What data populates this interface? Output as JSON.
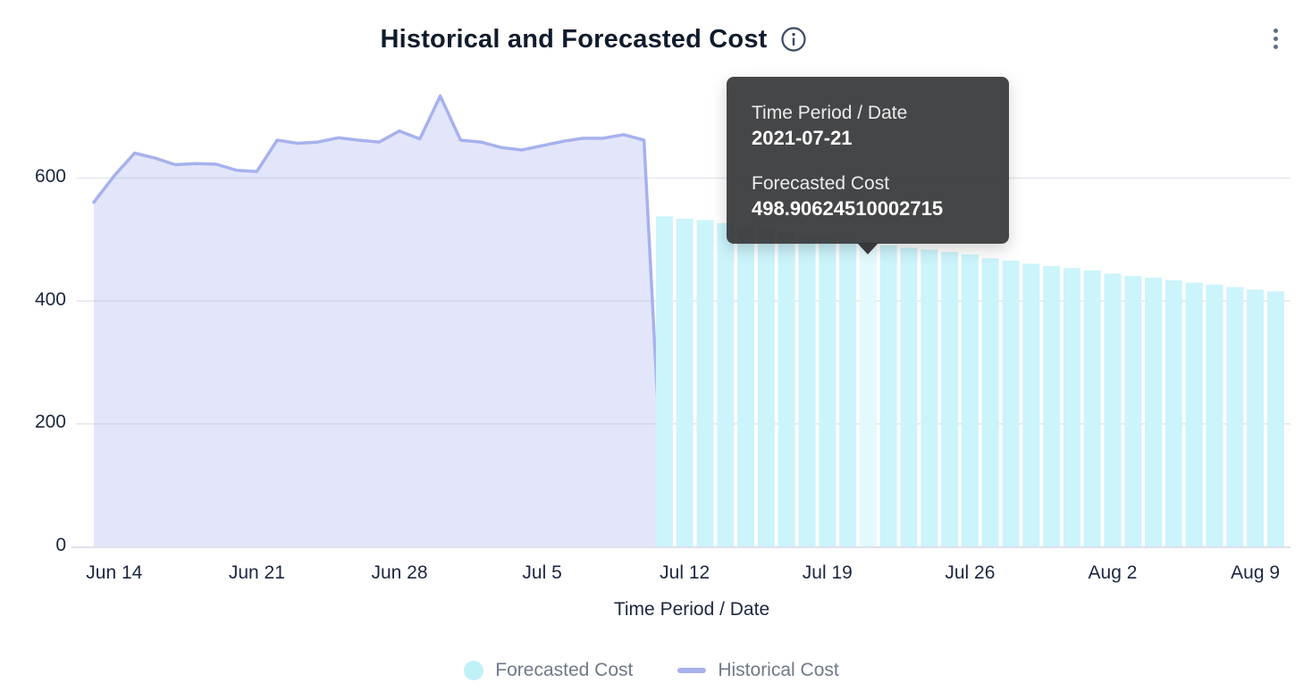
{
  "header": {
    "title": "Historical and Forecasted Cost"
  },
  "menu": {
    "more_options_icon": "kebab-menu-icon",
    "info_icon": "info-icon"
  },
  "tooltip": {
    "field_label": "Time Period / Date",
    "date": "2021-07-21",
    "value_label": "Forecasted Cost",
    "value": "498.90624510002715"
  },
  "legend": [
    {
      "label": "Forecasted Cost",
      "swatch": "circle",
      "color": "#bff1f6"
    },
    {
      "label": "Historical Cost",
      "swatch": "line",
      "color": "#a7b1ee"
    }
  ],
  "colors": {
    "title_text": "#101c2c",
    "axis_text": "#1b2740",
    "legend_text": "#6f7989",
    "gridline": "#e6e7ef",
    "baseline": "#dfe1ec",
    "bar_fill": "#cbf4fb",
    "bar_highlight_fill": "#e3fafd",
    "area_line": "#a7b1ee",
    "area_fill": "rgba(167,177,240,0.32)",
    "tooltip_bg": "#333436",
    "icon_gray": "#3b4a63"
  },
  "chart_data": {
    "type": "mixed",
    "title": "Historical and Forecasted Cost",
    "xlabel": "Time Period / Date",
    "ylabel": "",
    "ylim": [
      0,
      760
    ],
    "grid": true,
    "legend_position": "bottom",
    "y_ticks": [
      0,
      200,
      400,
      600
    ],
    "x_tick_labels": [
      "Jun 14",
      "Jun 21",
      "Jun 28",
      "Jul 5",
      "Jul 12",
      "Jul 19",
      "Jul 26",
      "Aug 2",
      "Aug 9"
    ],
    "x_tick_dates": [
      "2021-06-14",
      "2021-06-21",
      "2021-06-28",
      "2021-07-05",
      "2021-07-12",
      "2021-07-19",
      "2021-07-26",
      "2021-08-02",
      "2021-08-09"
    ],
    "series": [
      {
        "name": "Historical Cost",
        "type": "area",
        "dates": [
          "2021-06-13",
          "2021-06-14",
          "2021-06-15",
          "2021-06-16",
          "2021-06-17",
          "2021-06-18",
          "2021-06-19",
          "2021-06-20",
          "2021-06-21",
          "2021-06-22",
          "2021-06-23",
          "2021-06-24",
          "2021-06-25",
          "2021-06-26",
          "2021-06-27",
          "2021-06-28",
          "2021-06-29",
          "2021-06-30",
          "2021-07-01",
          "2021-07-02",
          "2021-07-03",
          "2021-07-04",
          "2021-07-05",
          "2021-07-06",
          "2021-07-07",
          "2021-07-08",
          "2021-07-09",
          "2021-07-10",
          "2021-07-11"
        ],
        "values": [
          560,
          603,
          640,
          632,
          621,
          623,
          622,
          612,
          610,
          661,
          656,
          658,
          665,
          661,
          658,
          676,
          663,
          733,
          661,
          658,
          649,
          645,
          652,
          659,
          664,
          664,
          670,
          661,
          25
        ]
      },
      {
        "name": "Forecasted Cost",
        "type": "bar",
        "highlighted_date": "2021-07-21",
        "dates": [
          "2021-07-11",
          "2021-07-12",
          "2021-07-13",
          "2021-07-14",
          "2021-07-15",
          "2021-07-16",
          "2021-07-17",
          "2021-07-18",
          "2021-07-19",
          "2021-07-20",
          "2021-07-21",
          "2021-07-22",
          "2021-07-23",
          "2021-07-24",
          "2021-07-25",
          "2021-07-26",
          "2021-07-27",
          "2021-07-28",
          "2021-07-29",
          "2021-07-30",
          "2021-07-31",
          "2021-08-01",
          "2021-08-02",
          "2021-08-03",
          "2021-08-04",
          "2021-08-05",
          "2021-08-06",
          "2021-08-07",
          "2021-08-08",
          "2021-08-09",
          "2021-08-10"
        ],
        "values": [
          537,
          533,
          531,
          526,
          522,
          517,
          512,
          507,
          503,
          500,
          498.90624510002715,
          490,
          486,
          483,
          479,
          475,
          469,
          465,
          460,
          456,
          453,
          449,
          444,
          440,
          437,
          433,
          429,
          426,
          422,
          418,
          415
        ]
      }
    ]
  }
}
